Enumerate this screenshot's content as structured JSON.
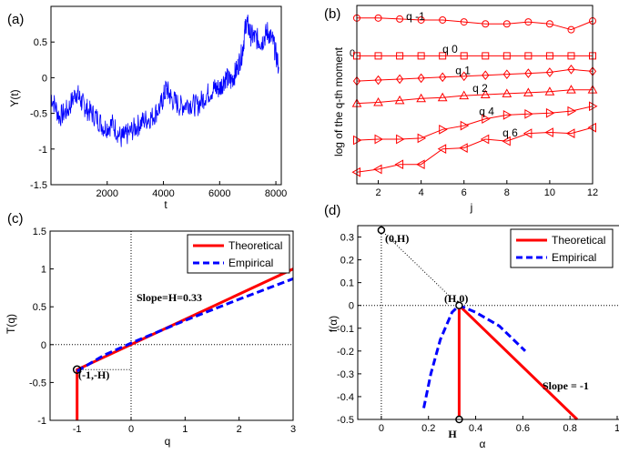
{
  "chart_data": [
    {
      "id": "a",
      "type": "line",
      "panel_label": "(a)",
      "xlabel": "t",
      "ylabel": "Y(t)",
      "xlim": [
        0,
        8192
      ],
      "ylim": [
        -1.5,
        1
      ],
      "xticks": [
        2000,
        4000,
        6000,
        8000
      ],
      "xtick_labels": [
        "2000",
        "4000",
        "6000",
        "8000"
      ],
      "yticks": [
        -1.5,
        -1,
        -0.5,
        0,
        0.5
      ],
      "ytick_labels": [
        "-1.5",
        "-1",
        "-0.5",
        "0",
        "0.5"
      ],
      "series": [
        {
          "name": "Y(t)",
          "color": "#0000ff",
          "x": [
            0,
            300,
            600,
            900,
            1100,
            1300,
            1600,
            1900,
            2200,
            2500,
            2700,
            3000,
            3300,
            3600,
            3900,
            4100,
            4300,
            4600,
            4900,
            5200,
            5500,
            5800,
            6000,
            6200,
            6400,
            6600,
            6800,
            6950,
            7100,
            7300,
            7500,
            7700,
            7900,
            8100
          ],
          "values": [
            -0.25,
            -0.55,
            -0.45,
            -0.2,
            -0.35,
            -0.45,
            -0.55,
            -0.7,
            -0.65,
            -0.85,
            -0.8,
            -0.7,
            -0.6,
            -0.55,
            -0.4,
            -0.15,
            -0.3,
            -0.4,
            -0.35,
            -0.4,
            -0.25,
            -0.15,
            -0.15,
            0.0,
            -0.05,
            0.1,
            0.35,
            0.8,
            0.6,
            0.55,
            0.5,
            0.65,
            0.5,
            0.15
          ]
        }
      ]
    },
    {
      "id": "b",
      "type": "line",
      "panel_label": "(b)",
      "xlabel": "j",
      "ylabel": "log of the q-th moment",
      "xlim": [
        1,
        12
      ],
      "xticks": [
        2,
        4,
        6,
        8,
        10,
        12
      ],
      "xtick_labels": [
        "2",
        "4",
        "6",
        "8",
        "10",
        "12"
      ],
      "ytick_labels": [
        "0"
      ],
      "x": [
        1,
        2,
        3,
        4,
        5,
        6,
        7,
        8,
        9,
        10,
        11,
        12
      ],
      "series": [
        {
          "name": "q -1",
          "marker": "circle",
          "values": [
            1.95,
            1.95,
            1.9,
            1.85,
            1.85,
            1.75,
            1.65,
            1.65,
            1.75,
            1.65,
            1.35,
            1.8
          ]
        },
        {
          "name": "q 0",
          "marker": "square",
          "values": [
            0,
            0,
            0,
            0,
            0,
            0,
            0,
            0,
            0,
            0,
            0,
            0
          ]
        },
        {
          "name": "q 1",
          "marker": "diamond",
          "values": [
            -1.3,
            -1.25,
            -1.2,
            -1.15,
            -1.1,
            -1.05,
            -1.0,
            -0.95,
            -0.9,
            -0.85,
            -0.7,
            -0.8
          ]
        },
        {
          "name": "q 2",
          "marker": "triangle-up",
          "values": [
            -2.45,
            -2.4,
            -2.3,
            -2.2,
            -2.15,
            -2.05,
            -2.0,
            -1.95,
            -1.9,
            -1.85,
            -1.75,
            -1.75
          ]
        },
        {
          "name": "q 4",
          "marker": "triangle-right",
          "values": [
            -4.35,
            -4.3,
            -4.3,
            -4.25,
            -3.8,
            -3.6,
            -3.25,
            -3.05,
            -3.0,
            -2.95,
            -2.85,
            -2.6
          ]
        },
        {
          "name": "q 6",
          "marker": "triangle-left",
          "values": [
            -6.0,
            -5.85,
            -5.6,
            -5.6,
            -4.8,
            -4.75,
            -4.3,
            -4.4,
            -4.0,
            -3.95,
            -4.0,
            -3.7
          ]
        }
      ],
      "qlabels": [
        {
          "text": "q -1",
          "j": 3.3,
          "v": 1.85
        },
        {
          "text": "q 0",
          "j": 5.0,
          "v": 0.15
        },
        {
          "text": "q 1",
          "j": 5.6,
          "v": -0.95
        },
        {
          "text": "q 2",
          "j": 6.4,
          "v": -1.85
        },
        {
          "text": "q 4",
          "j": 6.7,
          "v": -3.05
        },
        {
          "text": "q 6",
          "j": 7.8,
          "v": -4.15
        }
      ]
    },
    {
      "id": "c",
      "type": "line",
      "panel_label": "(c)",
      "xlabel": "q",
      "ylabel": "T(q)",
      "xlim": [
        -1.5,
        3
      ],
      "ylim": [
        -1,
        1.5
      ],
      "xticks": [
        -1,
        0,
        1,
        2,
        3
      ],
      "xtick_labels": [
        "-1",
        "0",
        "1",
        "2",
        "3"
      ],
      "yticks": [
        -1,
        -0.5,
        0,
        0.5,
        1,
        1.5
      ],
      "ytick_labels": [
        "-1",
        "-0.5",
        "0",
        "0.5",
        "1",
        "1.5"
      ],
      "series": [
        {
          "name": "Theoretical",
          "color": "#ff0000",
          "dash": false,
          "x": [
            -1,
            -1,
            3
          ],
          "values": [
            -1,
            -0.33,
            1.0
          ]
        },
        {
          "name": "Empirical",
          "color": "#0000ff",
          "dash": true,
          "x": [
            -1,
            -0.5,
            0,
            1,
            2,
            3
          ],
          "values": [
            -0.35,
            -0.14,
            0.02,
            0.32,
            0.6,
            0.87
          ]
        }
      ],
      "legend": [
        "Theoretical",
        "Empirical"
      ],
      "legend_position": "top-right",
      "annotations": [
        "Slope=H=0.33",
        "(-1,-H)"
      ],
      "point": {
        "x": -1,
        "y": -0.33
      }
    },
    {
      "id": "d",
      "type": "line",
      "panel_label": "(d)",
      "xlabel": "α",
      "ylabel": "f(α)",
      "xlim": [
        -0.1,
        1
      ],
      "ylim": [
        -0.5,
        0.35
      ],
      "xticks": [
        0,
        0.2,
        0.4,
        0.6,
        0.8,
        1
      ],
      "xtick_labels": [
        "0",
        "0.2",
        "0.4",
        "0.6",
        "0.8",
        "1"
      ],
      "yticks": [
        -0.5,
        -0.4,
        -0.3,
        -0.2,
        -0.1,
        0,
        0.1,
        0.2,
        0.3
      ],
      "ytick_labels": [
        "-0.5",
        "-0.4",
        "-0.3",
        "-0.2",
        "-0.1",
        "0",
        "0.1",
        "0.2",
        "0.3"
      ],
      "series": [
        {
          "name": "Theoretical",
          "color": "#ff0000",
          "dash": false,
          "x": [
            0.33,
            0.33,
            0.83
          ],
          "values": [
            -0.5,
            0,
            -0.5
          ]
        },
        {
          "name": "Empirical",
          "color": "#0000ff",
          "dash": true,
          "x": [
            0.18,
            0.21,
            0.25,
            0.3,
            0.33,
            0.4,
            0.5,
            0.61
          ],
          "values": [
            -0.45,
            -0.3,
            -0.15,
            -0.03,
            0.0,
            -0.03,
            -0.09,
            -0.2
          ]
        }
      ],
      "legend": [
        "Theoretical",
        "Empirical"
      ],
      "legend_position": "top-right",
      "annotations": [
        "(0,H)",
        "(H,0)",
        "Slope = -1",
        "H"
      ],
      "points": [
        {
          "x": 0,
          "y": 0.33
        },
        {
          "x": 0.33,
          "y": 0
        },
        {
          "x": 0.33,
          "y": -0.5
        }
      ]
    }
  ]
}
